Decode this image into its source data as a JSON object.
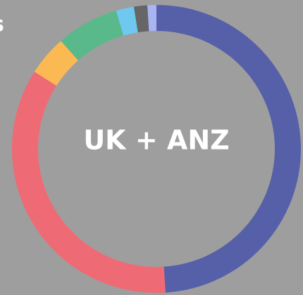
{
  "chart_data": {
    "type": "donut",
    "title": "s",
    "center_label": "UK + ANZ",
    "categories": [
      null,
      null,
      null,
      null,
      null,
      null,
      null
    ],
    "values": [
      49,
      35,
      4.5,
      7,
      2,
      1.5,
      1
    ],
    "colors": [
      "#5560a8",
      "#ee6b75",
      "#fbb954",
      "#5ab98a",
      "#6ec8ef",
      "#666666",
      "#a9b4f2"
    ]
  }
}
